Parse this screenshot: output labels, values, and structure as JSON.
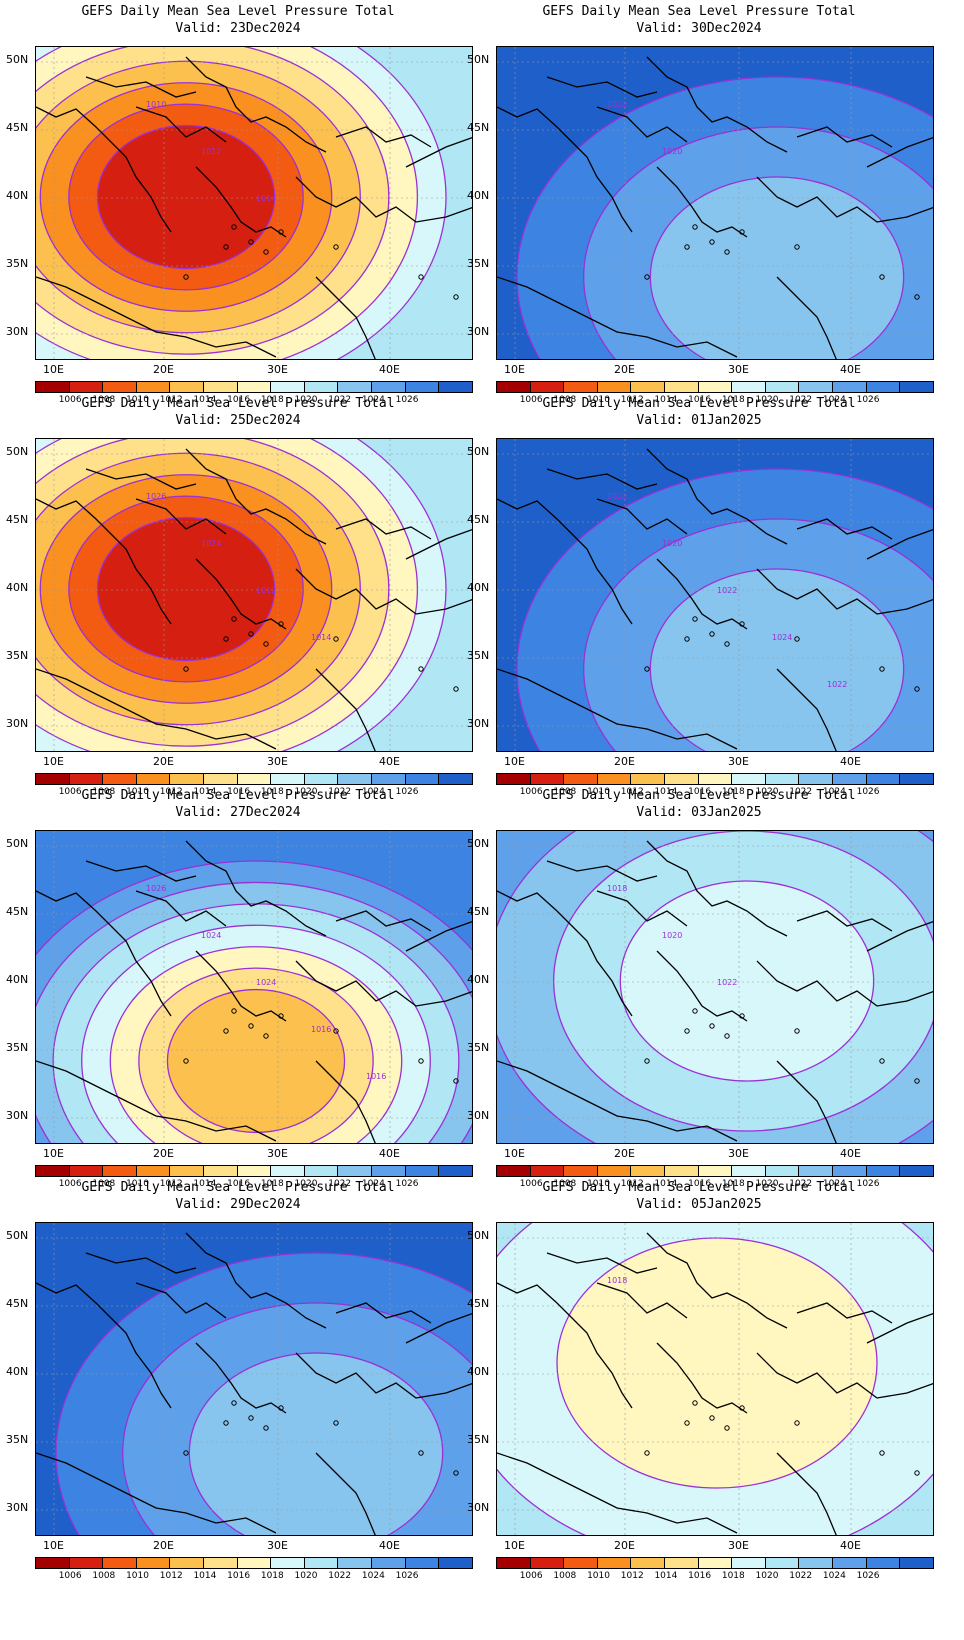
{
  "title": "GEFS Daily Mean Sea Level Pressure Total",
  "colorbar": {
    "labels": [
      "1006",
      "1008",
      "1010",
      "1012",
      "1014",
      "1016",
      "1018",
      "1020",
      "1022",
      "1024",
      "1026"
    ],
    "colors": [
      "#a40000",
      "#d51f10",
      "#f35a12",
      "#f9901f",
      "#fcc04f",
      "#fee18a",
      "#fff6c0",
      "#d8f7fa",
      "#b1e6f4",
      "#87c4ee",
      "#5ea1ea",
      "#3c83e2",
      "#1f5fc9"
    ]
  },
  "axes": {
    "lat_labels": [
      "50N",
      "45N",
      "40N",
      "35N",
      "30N"
    ],
    "lon_labels": [
      "10E",
      "20E",
      "30E",
      "40E"
    ]
  },
  "panels": [
    {
      "valid": "Valid: 23Dec2024",
      "regime": "low",
      "center_color": "#a40000",
      "contours": [
        "1010",
        "1012",
        "1014"
      ]
    },
    {
      "valid": "Valid: 30Dec2024",
      "regime": "high",
      "center_color": "#1f5fc9",
      "contours": [
        "1022",
        "1020"
      ]
    },
    {
      "valid": "Valid: 25Dec2024",
      "regime": "low",
      "center_color": "#d51f10",
      "contours": [
        "1026",
        "1024",
        "1012",
        "1014"
      ]
    },
    {
      "valid": "Valid: 01Jan2025",
      "regime": "high",
      "center_color": "#3c83e2",
      "contours": [
        "1022",
        "1020",
        "1022",
        "1024",
        "1022"
      ]
    },
    {
      "valid": "Valid: 27Dec2024",
      "regime": "mid",
      "center_color": "#fcc04f",
      "contours": [
        "1026",
        "1024",
        "1024",
        "1016",
        "1016"
      ]
    },
    {
      "valid": "Valid: 03Jan2025",
      "regime": "light",
      "center_color": "#5ea1ea",
      "contours": [
        "1018",
        "1020",
        "1022"
      ]
    },
    {
      "valid": "Valid: 29Dec2024",
      "regime": "high",
      "center_color": "#1f5fc9",
      "contours": []
    },
    {
      "valid": "Valid: 05Jan2025",
      "regime": "vlight",
      "center_color": "#b1e6f4",
      "contours": [
        "1018"
      ]
    }
  ]
}
